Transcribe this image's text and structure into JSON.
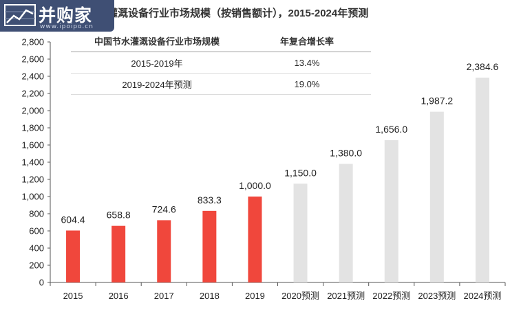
{
  "title": "中国节水灌溉设备行业市场规模（按销售额计），2015-2024年预测",
  "logo": {
    "text": "并购家",
    "url": "www.ipoipo.cn"
  },
  "cagr_table": {
    "headers": [
      "中国节水灌溉设备行业市场规模",
      "年复合增长率"
    ],
    "rows": [
      {
        "period": "2015-2019年",
        "rate": "13.4%"
      },
      {
        "period": "2019-2024年预测",
        "rate": "19.0%"
      }
    ]
  },
  "colors": {
    "actual": "#f0473c",
    "forecast": "#e3e3e3",
    "logo_bg": "#3f4f74"
  },
  "chart_data": {
    "type": "bar",
    "title": "中国节水灌溉设备行业市场规模（按销售额计），2015-2024年预测",
    "xlabel": "",
    "ylabel": "",
    "ylim": [
      0,
      2800
    ],
    "yticks": [
      0,
      200,
      400,
      600,
      800,
      1000,
      1200,
      1400,
      1600,
      1800,
      2000,
      2200,
      2400,
      2600,
      2800
    ],
    "ytick_labels": [
      "0",
      "200",
      "400",
      "600",
      "800",
      "1,000",
      "1,200",
      "1,400",
      "1,600",
      "1,800",
      "2,000",
      "2,200",
      "2,400",
      "2,600",
      "2,800"
    ],
    "categories": [
      "2015",
      "2016",
      "2017",
      "2018",
      "2019",
      "2020预测",
      "2021预测",
      "2022预测",
      "2023预测",
      "2024预测"
    ],
    "values": [
      604.4,
      658.8,
      724.6,
      833.3,
      1000.0,
      1150.0,
      1380.0,
      1656.0,
      1987.2,
      2384.6
    ],
    "value_labels": [
      "604.4",
      "658.8",
      "724.6",
      "833.3",
      "1,000.0",
      "1,150.0",
      "1,380.0",
      "1,656.0",
      "1,987.2",
      "2,384.6"
    ],
    "forecast": [
      false,
      false,
      false,
      false,
      false,
      true,
      true,
      true,
      true,
      true
    ],
    "grid": false,
    "legend": "none"
  }
}
